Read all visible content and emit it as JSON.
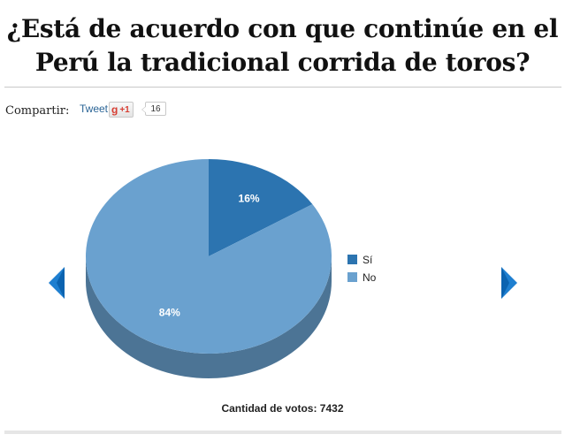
{
  "poll": {
    "title_line1": "¿Está de acuerdo con que continúe en el",
    "title_line2": "Perú la tradicional corrida de toros?",
    "votes_label": "Cantidad de votos: 7432"
  },
  "share": {
    "label": "Compartir:",
    "tweet_label": "Tweet",
    "gplus_label": "+1",
    "gplus_icon": "g-icon",
    "gplus_count": "16"
  },
  "nav": {
    "prev_icon": "arrow-left-icon",
    "next_icon": "arrow-right-icon",
    "color": "#1e7fd0"
  },
  "chart_data": {
    "type": "pie",
    "title": "",
    "categories": [
      "Sí",
      "No"
    ],
    "values": [
      16,
      84
    ],
    "value_labels": [
      "16%",
      "84%"
    ],
    "colors": [
      "#2c74b0",
      "#6aa1cf"
    ],
    "legend_position": "right",
    "three_d": true
  }
}
